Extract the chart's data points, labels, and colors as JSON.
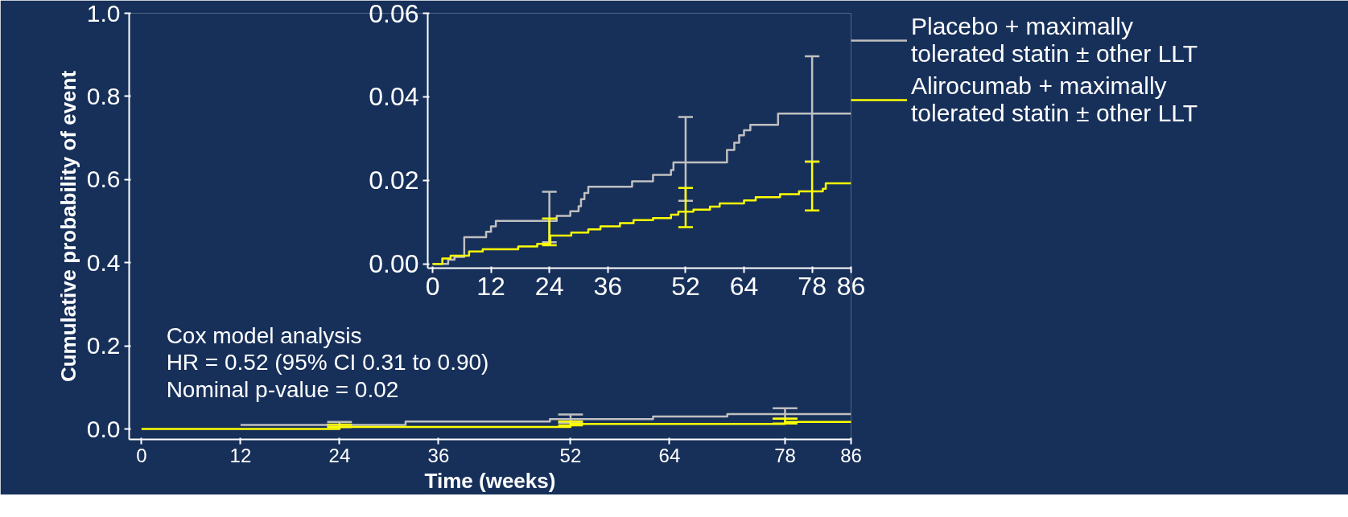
{
  "chart_data": [
    {
      "type": "step",
      "ylabel": "Cumulative probability of event",
      "xlabel": "Time (weeks)",
      "xlim": [
        -1.5,
        86
      ],
      "xticks": [
        0,
        12,
        24,
        36,
        52,
        64,
        78,
        86
      ],
      "ylim": [
        -0.025,
        1.0
      ],
      "yticks": [
        {
          "value": 0,
          "label": "0.0"
        },
        0.2,
        0.4,
        0.6,
        0.8,
        {
          "value": 1,
          "label": "1.0"
        }
      ],
      "grid": false,
      "legend": "right",
      "annotations": [
        "Cox model analysis",
        "HR = 0.52 (95% CI 0.31 to 0.90)",
        "Nominal p-value = 0.02"
      ],
      "series": [
        {
          "name": "Placebo + maximally tolerated statin ± other LLT",
          "color": "#c0c0c0",
          "x": [
            12,
            24,
            32,
            49.5,
            52,
            62,
            71,
            78,
            86
          ],
          "values": [
            0.01,
            0.01,
            0.018,
            0.024,
            0.024,
            0.03,
            0.036,
            0.036,
            0.036
          ],
          "errors": [
            null,
            [
              0.005,
              0.017
            ],
            null,
            null,
            [
              0.015,
              0.035
            ],
            null,
            null,
            [
              0.025,
              0.05
            ],
            null
          ]
        },
        {
          "name": "Alirocumab + maximally tolerated statin ± other LLT",
          "color": "#ffff00",
          "x": [
            0,
            24,
            52,
            78,
            86
          ],
          "values": [
            0,
            0.005,
            0.012,
            0.017,
            0.019
          ],
          "errors": [
            null,
            [
              0.005,
              0.011
            ],
            [
              0.009,
              0.018
            ],
            [
              0.013,
              0.025
            ],
            null
          ]
        }
      ]
    },
    {
      "type": "step",
      "xlim": [
        -1,
        86
      ],
      "xticks": [
        0,
        12,
        24,
        36,
        52,
        64,
        78,
        86
      ],
      "ylim": [
        -0.001,
        0.06
      ],
      "yticks": [
        {
          "value": 0,
          "label": "0.00"
        },
        {
          "value": 0.02,
          "label": "0.02"
        },
        {
          "value": 0.04,
          "label": "0.04"
        },
        {
          "value": 0.06,
          "label": "0.06"
        }
      ],
      "grid": false,
      "series": [
        {
          "color": "#c0c0c0",
          "x": [
            0,
            3.2,
            4.5,
            6.5,
            11,
            12,
            13,
            24,
            25.5,
            28.3,
            30,
            30.5,
            31.2,
            32,
            41,
            45.3,
            49,
            49.5,
            52,
            60.5,
            62,
            63,
            64,
            65.3,
            71,
            78,
            86
          ],
          "values": [
            0,
            0.001,
            0.0017,
            0.0064,
            0.0077,
            0.009,
            0.0103,
            0.0103,
            0.0115,
            0.0126,
            0.0138,
            0.0155,
            0.017,
            0.0185,
            0.0198,
            0.0213,
            0.0225,
            0.0243,
            0.0243,
            0.0273,
            0.029,
            0.0308,
            0.032,
            0.0333,
            0.036,
            0.036,
            0.036
          ],
          "errors": [
            null,
            null,
            null,
            null,
            null,
            null,
            null,
            [
              0.0052,
              0.0173
            ],
            null,
            null,
            null,
            null,
            null,
            null,
            null,
            null,
            null,
            null,
            [
              0.0151,
              0.0352
            ],
            null,
            null,
            null,
            null,
            null,
            null,
            [
              0.0245,
              0.0497
            ],
            null
          ]
        },
        {
          "color": "#ffff00",
          "x": [
            0,
            2,
            3.7,
            7.5,
            10.3,
            17.6,
            21.5,
            24,
            24.2,
            28.5,
            32,
            34.5,
            38.5,
            41.3,
            45.3,
            49,
            50.5,
            52,
            53.6,
            57,
            59,
            64,
            66.4,
            71.4,
            75.3,
            78,
            80.2,
            80.8,
            86
          ],
          "values": [
            0,
            0.0013,
            0.002,
            0.003,
            0.0035,
            0.0042,
            0.0048,
            0.0048,
            0.0068,
            0.0075,
            0.0083,
            0.009,
            0.0098,
            0.0105,
            0.011,
            0.0118,
            0.0125,
            0.0125,
            0.013,
            0.0137,
            0.0145,
            0.0152,
            0.016,
            0.0167,
            0.0174,
            0.0174,
            0.018,
            0.0193,
            0.0193
          ],
          "errors": [
            null,
            null,
            null,
            null,
            null,
            null,
            null,
            [
              0.0045,
              0.0109
            ],
            null,
            null,
            null,
            null,
            null,
            null,
            null,
            null,
            null,
            [
              0.0088,
              0.0182
            ],
            null,
            null,
            null,
            null,
            null,
            null,
            null,
            [
              0.0128,
              0.0245
            ],
            null,
            null,
            null
          ]
        }
      ]
    }
  ]
}
